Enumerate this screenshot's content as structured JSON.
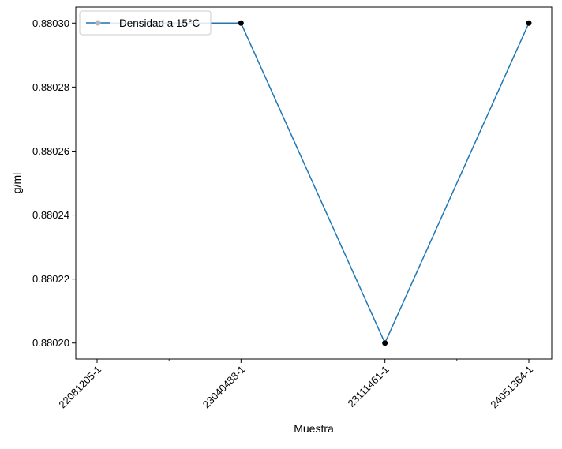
{
  "chart_data": {
    "type": "line",
    "title": "",
    "xlabel": "Muestra",
    "ylabel": "g/ml",
    "categories": [
      "22081205-1",
      "23040488-1",
      "23111461-1",
      "24051364-1"
    ],
    "series": [
      {
        "name": "Densidad a 15°C",
        "values": [
          0.8803,
          0.8803,
          0.8802,
          0.8803
        ],
        "markers_visible": [
          false,
          true,
          true,
          true
        ],
        "color": "#1f77b4",
        "marker_color": "#000000"
      }
    ],
    "yticks": [
      "0.88020",
      "0.88022",
      "0.88024",
      "0.88026",
      "0.88028",
      "0.88030"
    ],
    "ylim": [
      0.880195,
      0.880305
    ],
    "grid": false,
    "legend_position": "top-left"
  }
}
